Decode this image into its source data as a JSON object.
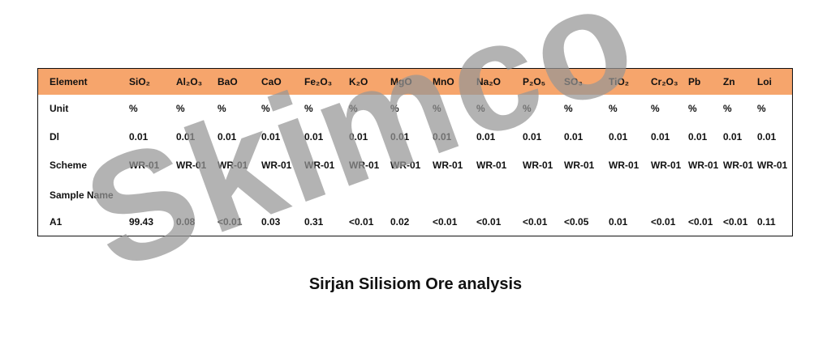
{
  "table": {
    "header": [
      "Element",
      "SiO₂",
      "Al₂O₃",
      "BaO",
      "CaO",
      "Fe₂O₃",
      "K₂O",
      "MgO",
      "MnO",
      "Na₂O",
      "P₂O₅",
      "SO₃",
      "TiO₂",
      "Cr₂O₃",
      "Pb",
      "Zn",
      "Loi"
    ],
    "rows": [
      [
        "Unit",
        "%",
        "%",
        "%",
        "%",
        "%",
        "%",
        "%",
        "%",
        "%",
        "%",
        "%",
        "%",
        "%",
        "%",
        "%",
        "%"
      ],
      [
        "Dl",
        "0.01",
        "0.01",
        "0.01",
        "0.01",
        "0.01",
        "0.01",
        "0.01",
        "0.01",
        "0.01",
        "0.01",
        "0.01",
        "0.01",
        "0.01",
        "0.01",
        "0.01",
        "0.01"
      ],
      [
        "Scheme",
        "WR-01",
        "WR-01",
        "WR-01",
        "WR-01",
        "WR-01",
        "WR-01",
        "WR-01",
        "WR-01",
        "WR-01",
        "WR-01",
        "WR-01",
        "WR-01",
        "WR-01",
        "WR-01",
        "WR-01",
        "WR-01"
      ],
      [
        "Sample Name"
      ],
      [
        "A1",
        "99.43",
        "0.08",
        "<0.01",
        "0.03",
        "0.31",
        "<0.01",
        "0.02",
        "<0.01",
        "<0.01",
        "<0.01",
        "<0.05",
        "0.01",
        "<0.01",
        "<0.01",
        "<0.01",
        "0.11"
      ]
    ]
  },
  "caption": "Sirjan Silisiom Ore analysis",
  "watermark": "Skimco"
}
